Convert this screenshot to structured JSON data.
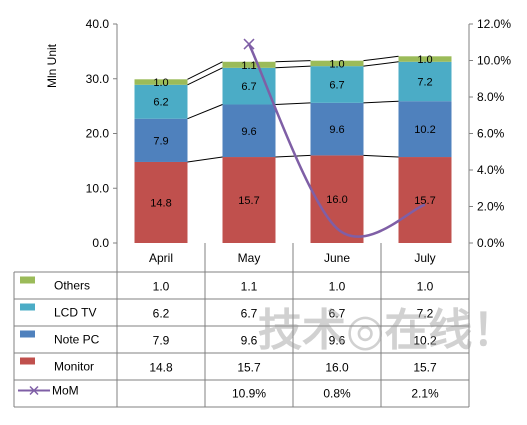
{
  "chart_data": {
    "type": "bar",
    "stacked": true,
    "categories": [
      "April",
      "May",
      "June",
      "July"
    ],
    "series": [
      {
        "name": "Monitor",
        "values": [
          14.8,
          15.7,
          16.0,
          15.7
        ],
        "color": "#c0504d"
      },
      {
        "name": "Note PC",
        "values": [
          7.9,
          9.6,
          9.6,
          10.2
        ],
        "color": "#4f81bd"
      },
      {
        "name": "LCD TV",
        "values": [
          6.2,
          6.7,
          6.7,
          7.2
        ],
        "color": "#4bacc6"
      },
      {
        "name": "Others",
        "values": [
          1.0,
          1.1,
          1.0,
          1.0
        ],
        "color": "#9bbb59"
      }
    ],
    "line_series": {
      "name": "MoM",
      "axis": "secondary",
      "values": [
        null,
        10.9,
        0.8,
        2.1
      ],
      "display": [
        "",
        "10.9%",
        "0.8%",
        "2.1%"
      ],
      "color": "#7f5fa6"
    },
    "ylabel": "Mln Unit",
    "ylim": [
      0,
      40
    ],
    "yticks": [
      "0.0",
      "10.0",
      "20.0",
      "30.0",
      "40.0"
    ],
    "y2lim": [
      0,
      12
    ],
    "y2ticks": [
      "0.0%",
      "2.0%",
      "4.0%",
      "6.0%",
      "8.0%",
      "10.0%",
      "12.0%"
    ],
    "series_lines": true,
    "data_table": true,
    "legend_placement": "data-table",
    "grid": false
  },
  "watermark": {
    "text": "技术◎在线！"
  }
}
